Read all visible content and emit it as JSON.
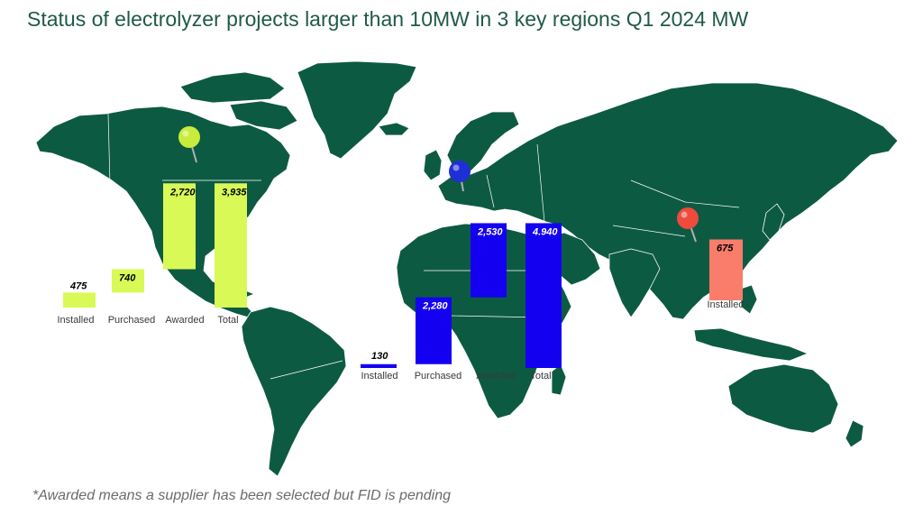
{
  "title": "Status of electrolyzer projects larger than 10MW in 3 key regions Q1 2024 MW",
  "footnote": "*Awarded means a supplier has been selected but FID is pending",
  "colors": {
    "map_land": "#0d5a43",
    "map_border": "#ffffff",
    "north_america": "#d9f956",
    "europe": "#1400f0",
    "china": "#f97d6a",
    "pin_north_america": "#c8ec3c",
    "pin_europe": "#1f2fd6",
    "pin_china": "#ef4a3c"
  },
  "chart_data": [
    {
      "type": "bar",
      "layout": "waterfall",
      "region_marker": "north_america",
      "categories": [
        "Installed",
        "Purchased",
        "Awarded",
        "Total"
      ],
      "values": [
        475,
        740,
        2720,
        3935
      ],
      "value_labels": [
        "475",
        "740",
        "2,720",
        "3,935"
      ]
    },
    {
      "type": "bar",
      "layout": "waterfall",
      "region_marker": "europe",
      "categories": [
        "Installed",
        "Purchased",
        "Awarded",
        "Total"
      ],
      "values": [
        130,
        2280,
        2530,
        4940
      ],
      "value_labels": [
        "130",
        "2,280",
        "2,530",
        "4.940"
      ]
    },
    {
      "type": "bar",
      "region_marker": "china",
      "categories": [
        "Installed"
      ],
      "values": [
        675
      ],
      "value_labels": [
        "675"
      ]
    }
  ]
}
